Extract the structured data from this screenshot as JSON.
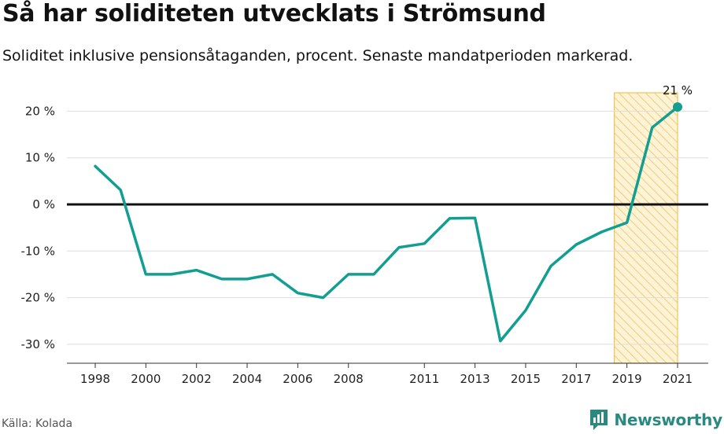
{
  "title": "Så har soliditeten utvecklats i Strömsund",
  "subtitle": "Soliditet inklusive pensionsåtaganden, procent. Senaste mandatperioden markerad.",
  "source": "Källa: Kolada",
  "brand": "Newsworthy",
  "colors": {
    "line": "#129e92",
    "highlight_stroke": "#f3c257",
    "highlight_fill": "#fbe7b0",
    "zero_line": "#111111",
    "grid": "#dddddd",
    "brand": "#2a8a82"
  },
  "chart_data": {
    "type": "line",
    "x": [
      1998,
      1999,
      2000,
      2001,
      2002,
      2003,
      2004,
      2005,
      2006,
      2007,
      2008,
      2009,
      2010,
      2011,
      2012,
      2013,
      2014,
      2015,
      2016,
      2017,
      2018,
      2019,
      2020,
      2021
    ],
    "series": [
      {
        "values": [
          8.2,
          3.1,
          -15,
          -15,
          -14.1,
          -16,
          -16,
          -15,
          -19,
          -20,
          -15,
          -15,
          -9.2,
          -8.4,
          -3,
          -2.9,
          -29.3,
          -22.7,
          -13.2,
          -8.6,
          -5.9,
          -3.9,
          16.5,
          20.9
        ]
      }
    ],
    "xticks": [
      1998,
      2000,
      2002,
      2004,
      2006,
      2008,
      2011,
      2013,
      2015,
      2017,
      2019,
      2021
    ],
    "xtick_labels": [
      "1998",
      "2000",
      "2002",
      "2004",
      "2006",
      "2008",
      "2011",
      "2013",
      "2015",
      "2017",
      "2019",
      "2021"
    ],
    "yticks": [
      20,
      10,
      0,
      -10,
      -20,
      -30
    ],
    "ytick_labels": [
      "20 %",
      "10 %",
      "0 %",
      "-10 %",
      "-20 %",
      "-30 %"
    ],
    "ylim": [
      -34,
      24
    ],
    "xlim": [
      1997,
      2022
    ],
    "highlight": {
      "from": 2018.5,
      "to": 2021
    },
    "end_label": "21 %",
    "grid": true,
    "xlabel": "",
    "ylabel": ""
  }
}
